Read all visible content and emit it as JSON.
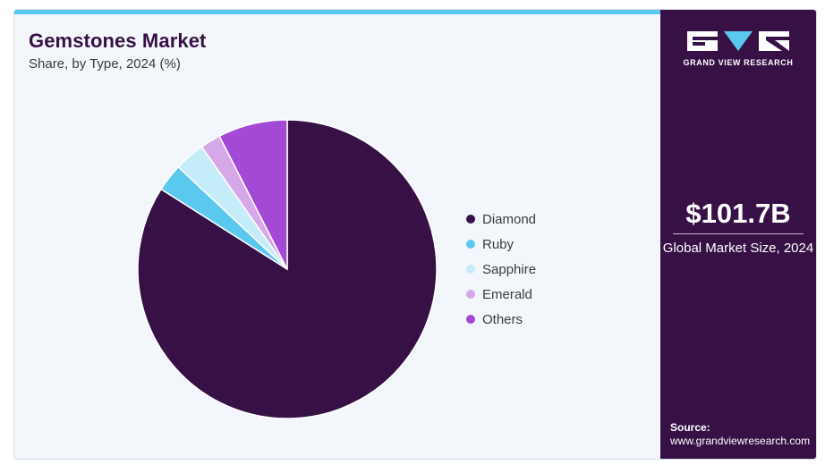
{
  "header": {
    "title": "Gemstones Market",
    "subtitle": "Share, by Type, 2024 (%)"
  },
  "chart_data": {
    "type": "pie",
    "title": "Gemstones Market",
    "subtitle": "Share, by Type, 2024 (%)",
    "categories": [
      "Diamond",
      "Ruby",
      "Sapphire",
      "Emerald",
      "Others"
    ],
    "values": [
      84,
      3,
      3.3,
      2.2,
      7.5
    ],
    "colors": [
      "#371145",
      "#5bc8f0",
      "#c4ecf9",
      "#d5a9e7",
      "#a349d5"
    ],
    "legend_position": "right",
    "start_angle_deg": 0,
    "direction": "clockwise"
  },
  "sidebar": {
    "brand": "GRAND VIEW RESEARCH",
    "market_size": "$101.7B",
    "market_size_label": "Global Market Size, 2024",
    "source_label": "Source:",
    "source_url": "www.grandviewresearch.com"
  },
  "colors": {
    "accent_bar": "#5bc8f0",
    "sidebar_bg": "#371145",
    "page_bg": "#f3f7fb"
  }
}
